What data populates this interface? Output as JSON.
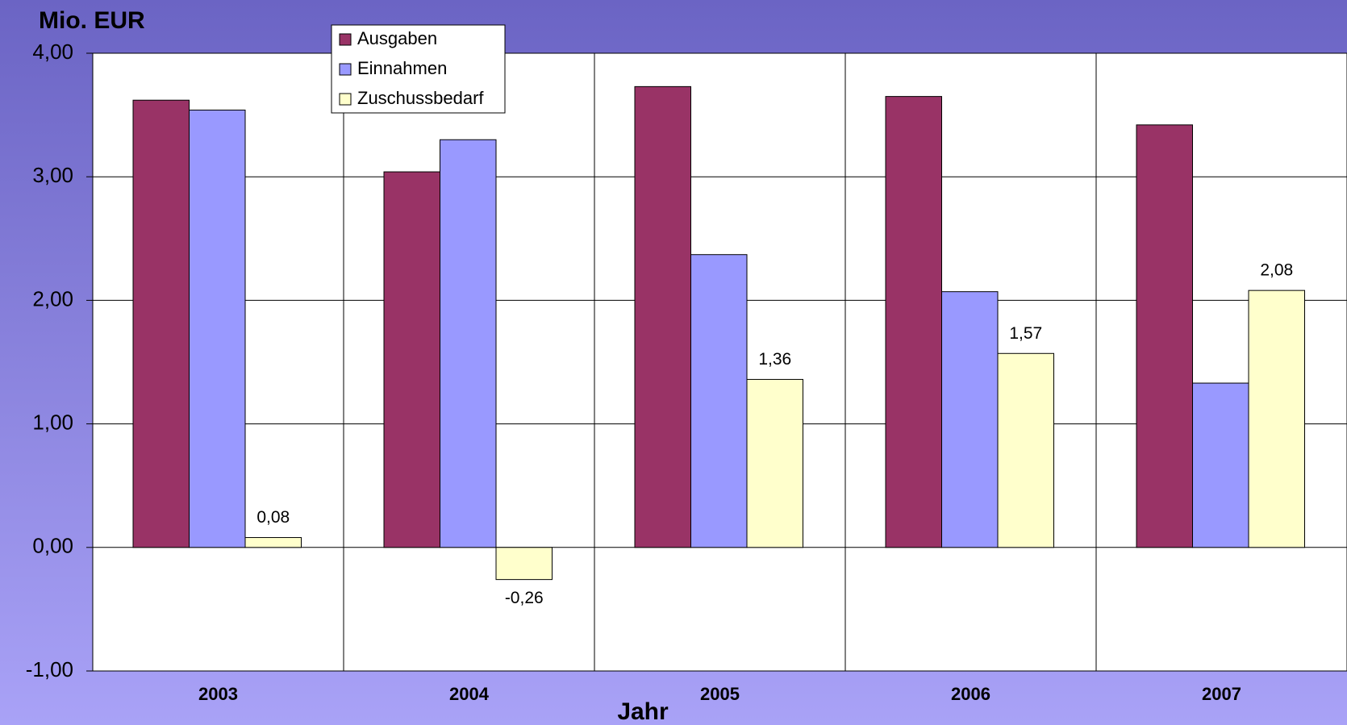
{
  "chart_data": {
    "type": "bar",
    "title": "Mio. EUR",
    "x_label": "Jahr",
    "categories": [
      "2003",
      "2004",
      "2005",
      "2006",
      "2007"
    ],
    "series": [
      {
        "name": "Ausgaben",
        "color": "#993366",
        "values": [
          3.62,
          3.04,
          3.73,
          3.65,
          3.42
        ]
      },
      {
        "name": "Einnahmen",
        "color": "#9999ff",
        "values": [
          3.54,
          3.3,
          2.37,
          2.07,
          1.33
        ]
      },
      {
        "name": "Zuschussbedarf",
        "color": "#ffffcc",
        "values": [
          0.08,
          -0.26,
          1.36,
          1.57,
          2.08
        ],
        "value_labels": [
          "0,08",
          "-0,26",
          "1,36",
          "1,57",
          "2,08"
        ]
      }
    ],
    "ylim": [
      -1,
      4
    ],
    "yticks": [
      {
        "value": -1,
        "label": "-1,00"
      },
      {
        "value": 0,
        "label": "0,00"
      },
      {
        "value": 1,
        "label": "1,00"
      },
      {
        "value": 2,
        "label": "2,00"
      },
      {
        "value": 3,
        "label": "3,00"
      },
      {
        "value": 4,
        "label": "4,00"
      }
    ],
    "grid": true
  }
}
